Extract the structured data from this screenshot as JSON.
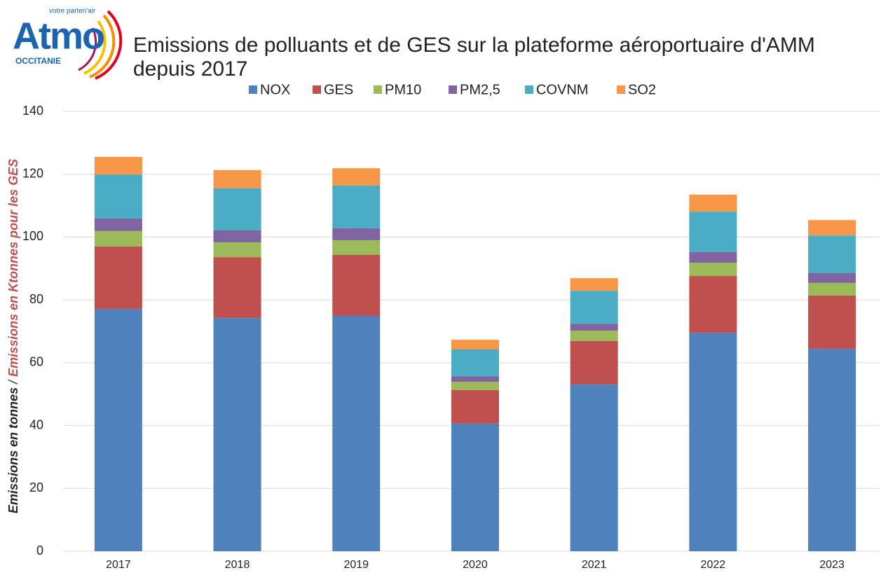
{
  "logo": {
    "name": "Atmo",
    "tagline": "votre parten'air",
    "region": "OCCITANIE"
  },
  "chart_data": {
    "type": "stacked_bar",
    "title": [
      "Emissions de polluants et de GES sur la plateforme aéroportuaire d'AMM",
      "depuis 2017"
    ],
    "y_label": [
      "Emissions en tonnes",
      "/",
      "Emissions en Ktonnes pour les GES"
    ],
    "categories": [
      "2017",
      "2018",
      "2019",
      "2020",
      "2021",
      "2022",
      "2023"
    ],
    "series": [
      {
        "name": "NOX",
        "color": "#4f81bd",
        "values": [
          77.1,
          74.2,
          74.9,
          40.6,
          53.1,
          69.5,
          64.4
        ]
      },
      {
        "name": "GES",
        "color": "#c0504d",
        "values": [
          19.9,
          19.4,
          19.4,
          10.7,
          13.8,
          18.1,
          17.0
        ]
      },
      {
        "name": "PM10",
        "color": "#9bbb59",
        "values": [
          4.9,
          4.7,
          4.7,
          2.6,
          3.3,
          4.2,
          4.0
        ]
      },
      {
        "name": "PM2,5",
        "color": "#8064a2",
        "values": [
          4.0,
          3.8,
          3.8,
          1.8,
          2.2,
          3.4,
          3.1
        ]
      },
      {
        "name": "COVNM",
        "color": "#4bacc6",
        "values": [
          14.0,
          13.4,
          13.6,
          8.5,
          10.5,
          12.9,
          12.0
        ]
      },
      {
        "name": "SO2",
        "color": "#f79646",
        "values": [
          5.6,
          5.8,
          5.5,
          3.1,
          4.0,
          5.4,
          4.9
        ]
      }
    ],
    "ylim": [
      0,
      140
    ],
    "yticks": [
      0,
      20,
      40,
      60,
      80,
      100,
      120,
      140
    ],
    "grid": true,
    "legend": "top"
  }
}
